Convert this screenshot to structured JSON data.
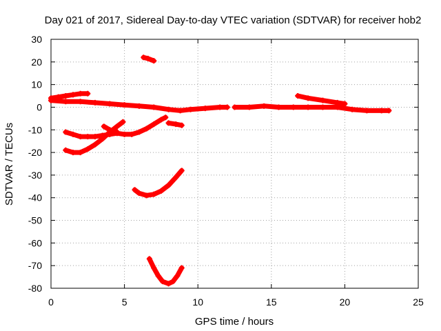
{
  "chart_data": {
    "type": "scatter",
    "title": "Day 021 of 2017, Sidereal Day-to-day VTEC variation (SDTVAR) for receiver hob2",
    "xlabel": "GPS time / hours",
    "ylabel": "SDTVAR / TECUs",
    "xlim": [
      0,
      25
    ],
    "ylim": [
      -80,
      30
    ],
    "x_ticks": [
      0,
      5,
      10,
      15,
      20,
      25
    ],
    "y_ticks": [
      -80,
      -70,
      -60,
      -50,
      -40,
      -30,
      -20,
      -10,
      0,
      10,
      20,
      30
    ],
    "x_tick_labels": [
      "0",
      "5",
      "10",
      "15",
      "20",
      "25"
    ],
    "y_tick_labels": [
      "-80",
      "-70",
      "-60",
      "-50",
      "-40",
      "-30",
      "-20",
      "-10",
      "0",
      "10",
      "20",
      "30"
    ],
    "grid": true,
    "legend": "none",
    "marker_color": "#ff0000",
    "series": [
      {
        "x": [
          0.0,
          0.5,
          1.0,
          1.5,
          2.0,
          2.5
        ],
        "y": [
          4,
          4.5,
          5,
          5.5,
          6,
          6
        ]
      },
      {
        "x": [
          0.0,
          1.0,
          2.0,
          3.0,
          4.0,
          5.0,
          6.0,
          7.0,
          8.0,
          8.8,
          9.5,
          10.5,
          11.5,
          12.0
        ],
        "y": [
          3,
          2.5,
          2.5,
          2,
          1.5,
          1,
          0.5,
          0,
          -1,
          -1.5,
          -1,
          -0.5,
          0,
          0
        ]
      },
      {
        "x": [
          12.5,
          13.5,
          14.5,
          15.5,
          16.5,
          17.5,
          18.5,
          19.5,
          20.5,
          21.5,
          22.5,
          23.0
        ],
        "y": [
          0,
          0,
          0.5,
          0,
          0,
          0,
          0,
          0,
          -1,
          -1.5,
          -1.5,
          -1.5
        ]
      },
      {
        "x": [
          16.8,
          17.5,
          18.5,
          19.5,
          20.0
        ],
        "y": [
          5,
          4,
          3,
          2,
          1.5
        ]
      },
      {
        "x": [
          6.3,
          6.6,
          7.0
        ],
        "y": [
          22,
          21.5,
          20.5
        ]
      },
      {
        "x": [
          1.0,
          1.5,
          2.0,
          2.5,
          3.0,
          3.5,
          4.0,
          4.5,
          5.0,
          5.5,
          6.0,
          6.5,
          7.0,
          7.5,
          7.8
        ],
        "y": [
          -11,
          -12,
          -13,
          -13,
          -13,
          -12.5,
          -12,
          -11.5,
          -12,
          -12,
          -11,
          -9.5,
          -7.5,
          -5.5,
          -4.5
        ]
      },
      {
        "x": [
          1.0,
          1.5,
          2.0,
          2.5,
          3.0,
          3.5,
          4.0,
          4.5,
          4.9
        ],
        "y": [
          -19,
          -20,
          -20,
          -18.5,
          -16.5,
          -14,
          -11,
          -8.5,
          -6.5
        ]
      },
      {
        "x": [
          3.6,
          4.0,
          4.5
        ],
        "y": [
          -8.5,
          -10,
          -11
        ]
      },
      {
        "x": [
          8.0,
          8.5,
          8.9
        ],
        "y": [
          -7,
          -7.5,
          -8
        ]
      },
      {
        "x": [
          5.7,
          6.0,
          6.5,
          7.0,
          7.5,
          8.0,
          8.5,
          8.9
        ],
        "y": [
          -36.5,
          -38,
          -39,
          -38.5,
          -37,
          -34.5,
          -31,
          -28
        ]
      },
      {
        "x": [
          6.7,
          7.0,
          7.3,
          7.6,
          8.0,
          8.3,
          8.6,
          8.9
        ],
        "y": [
          -67,
          -71,
          -74.5,
          -77,
          -78,
          -77,
          -74.5,
          -71
        ]
      }
    ]
  }
}
